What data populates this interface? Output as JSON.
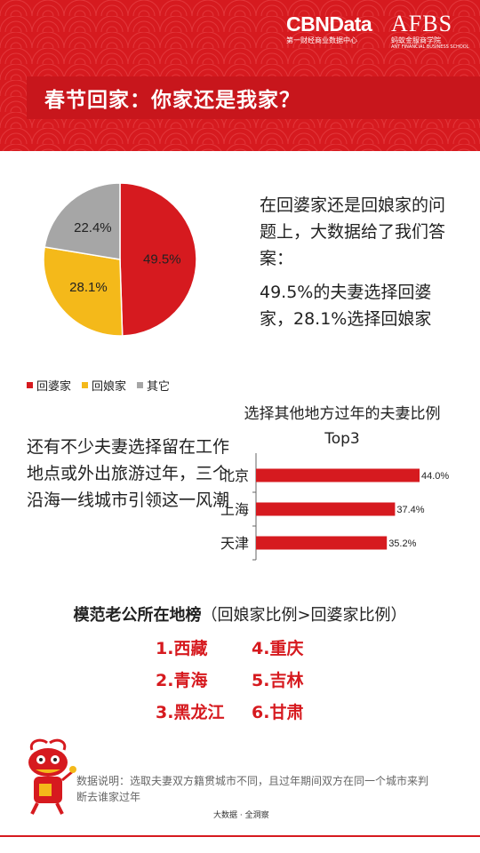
{
  "header": {
    "brand_cbn": "CBNData",
    "brand_cbn_sub": "第一财经商业数据中心",
    "brand_afbs": "AFBS",
    "brand_afbs_sub": "蚂蚁金服商学院",
    "brand_afbs_sub2": "ANT FINANCIAL BUSINESS SCHOOL",
    "title": "春节回家：你家还是我家？"
  },
  "colors": {
    "red": "#d61a1f",
    "yellow": "#f4b91a",
    "gray": "#a6a6a6"
  },
  "description1": {
    "line1": "在回婆家还是回娘家的问题上，大数据给了我们答案：",
    "line2": "49.5%的夫妻选择回婆家，28.1%选择回娘家"
  },
  "description2": "还有不少夫妻选择留在工作地点或外出旅游过年，三个沿海一线城市引领这一风潮",
  "ranking": {
    "title_bold": "模范老公所在地榜",
    "title_rest": "（回娘家比例>回婆家比例）",
    "items": [
      "1.西藏",
      "4.重庆",
      "2.青海",
      "5.吉林",
      "3.黑龙江",
      "6.甘肃"
    ]
  },
  "footnote": "数据说明：选取夫妻双方籍贯城市不同，且过年期间双方在同一个城市来判断去谁家过年",
  "footer_source": "大数据 · 全洞察",
  "chart_data": [
    {
      "type": "pie",
      "labels": [
        "回婆家",
        "回娘家",
        "其它"
      ],
      "values": [
        49.5,
        28.1,
        22.4
      ],
      "value_labels": [
        "49.5%",
        "28.1%",
        "22.4%"
      ],
      "colors": [
        "#d61a1f",
        "#f4b91a",
        "#a6a6a6"
      ],
      "legend_position": "bottom"
    },
    {
      "type": "bar",
      "orientation": "horizontal",
      "title": "选择其他地方过年的夫妻比例Top3",
      "categories": [
        "北京",
        "上海",
        "天津"
      ],
      "values": [
        44.0,
        37.4,
        35.2
      ],
      "value_labels": [
        "44.0%",
        "37.4%",
        "35.2%"
      ],
      "color": "#d61a1f"
    }
  ]
}
